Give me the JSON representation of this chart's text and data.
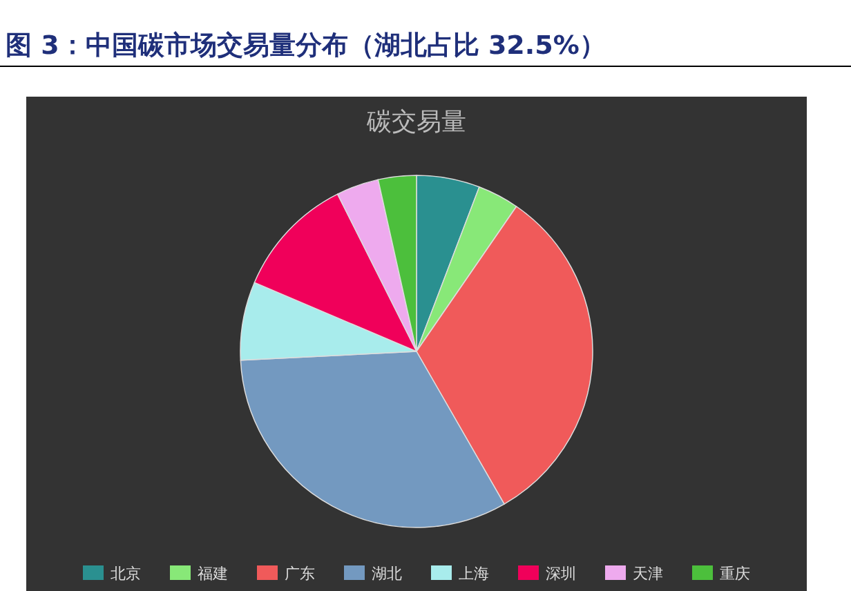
{
  "chart_data": {
    "type": "pie",
    "title": "图 3：中国碳市场交易量分布（湖北占比 32.5%）",
    "subtitle": "碳交易量",
    "categories": [
      "北京",
      "福建",
      "广东",
      "湖北",
      "上海",
      "深圳",
      "天津",
      "重庆"
    ],
    "values": [
      5.8,
      3.8,
      32.1,
      32.5,
      7.2,
      11.2,
      3.9,
      3.5
    ],
    "colors": [
      "#2a9090",
      "#88e878",
      "#f05a5a",
      "#7399c0",
      "#a8ecec",
      "#f0005a",
      "#eeaaee",
      "#4cbf3c"
    ],
    "legend": "bottom"
  }
}
